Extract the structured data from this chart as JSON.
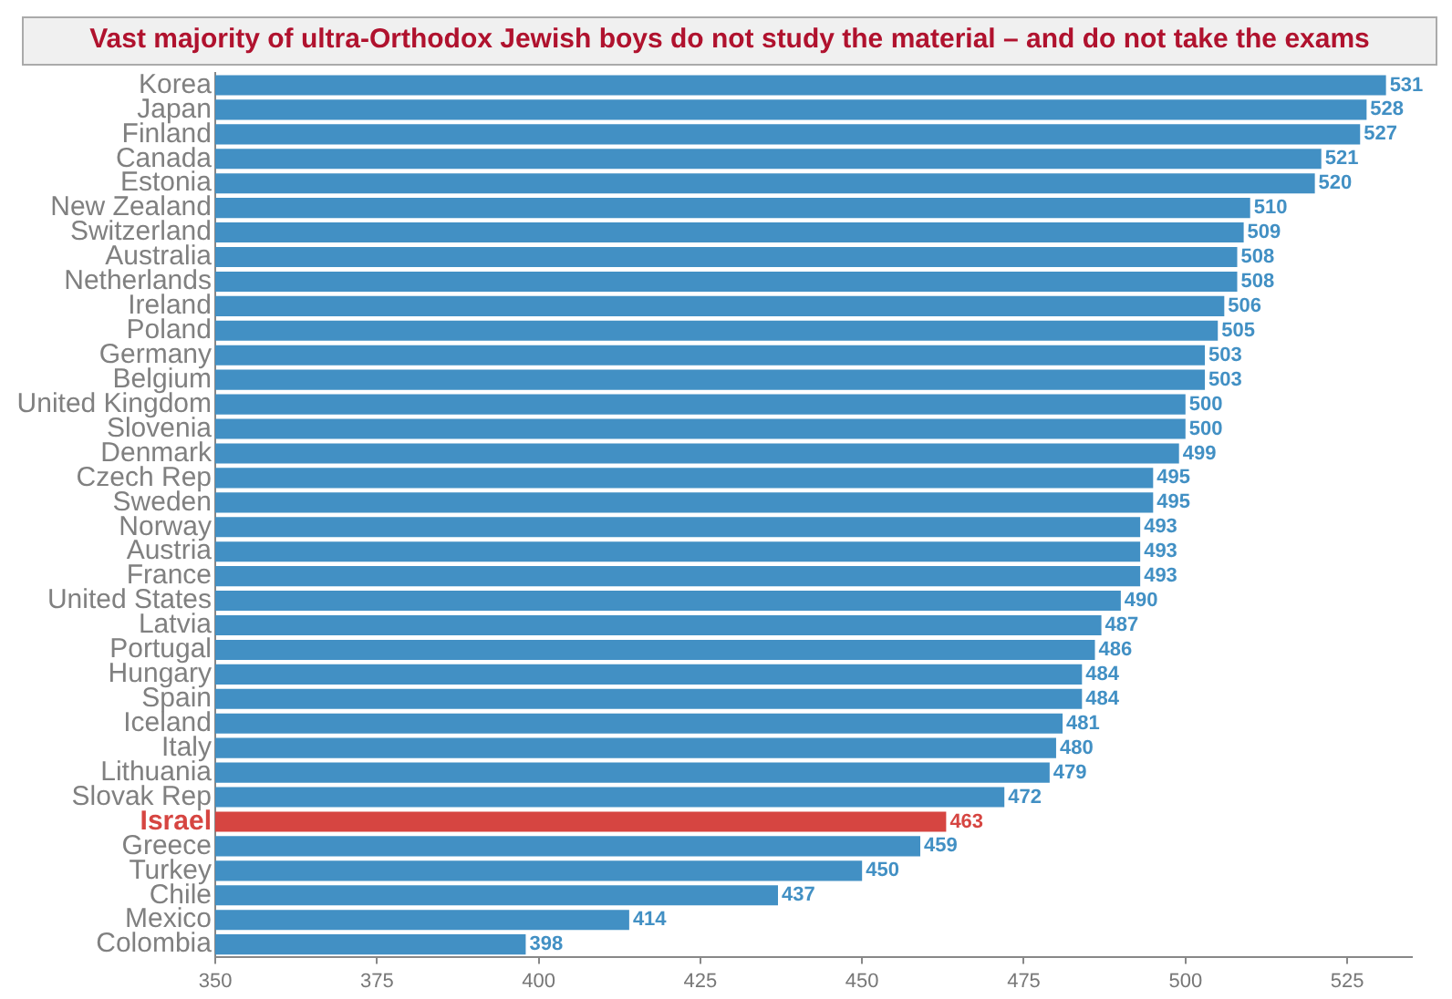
{
  "chart_data": {
    "type": "bar",
    "orientation": "horizontal",
    "title": "Vast majority of ultra-Orthodox Jewish boys do not study the material – and do not take the exams",
    "categories": [
      "Korea",
      "Japan",
      "Finland",
      "Canada",
      "Estonia",
      "New Zealand",
      "Switzerland",
      "Australia",
      "Netherlands",
      "Ireland",
      "Poland",
      "Germany",
      "Belgium",
      "United Kingdom",
      "Slovenia",
      "Denmark",
      "Czech Rep",
      "Sweden",
      "Norway",
      "Austria",
      "France",
      "United States",
      "Latvia",
      "Portugal",
      "Hungary",
      "Spain",
      "Iceland",
      "Italy",
      "Lithuania",
      "Slovak Rep",
      "Israel",
      "Greece",
      "Turkey",
      "Chile",
      "Mexico",
      "Colombia"
    ],
    "values": [
      531,
      528,
      527,
      521,
      520,
      510,
      509,
      508,
      508,
      506,
      505,
      503,
      503,
      500,
      500,
      499,
      495,
      495,
      493,
      493,
      493,
      490,
      487,
      486,
      484,
      484,
      481,
      480,
      479,
      472,
      463,
      459,
      450,
      437,
      414,
      398
    ],
    "color": "#4290c4",
    "colors": [
      "#4290c4",
      "#4290c4",
      "#4290c4",
      "#4290c4",
      "#4290c4",
      "#4290c4",
      "#4290c4",
      "#4290c4",
      "#4290c4",
      "#4290c4",
      "#4290c4",
      "#4290c4",
      "#4290c4",
      "#4290c4",
      "#4290c4",
      "#4290c4",
      "#4290c4",
      "#4290c4",
      "#4290c4",
      "#4290c4",
      "#4290c4",
      "#4290c4",
      "#4290c4",
      "#4290c4",
      "#4290c4",
      "#4290c4",
      "#4290c4",
      "#4290c4",
      "#4290c4",
      "#4290c4",
      "#d64541",
      "#4290c4",
      "#4290c4",
      "#4290c4",
      "#4290c4",
      "#4290c4"
    ],
    "xlim": [
      350,
      535
    ],
    "xticks": [
      350,
      375,
      400,
      425,
      450,
      475,
      500,
      525
    ],
    "data_labels": true,
    "grid": false,
    "legend": false
  }
}
